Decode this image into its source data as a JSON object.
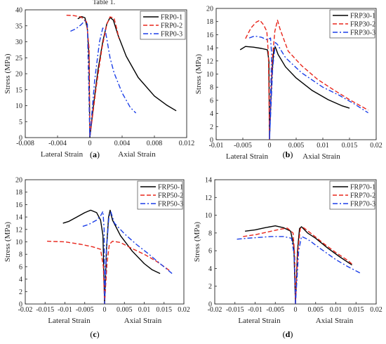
{
  "header_fragment": "Table 1.",
  "colors": {
    "series1": "#000000",
    "series2": "#e8261c",
    "series3": "#1c3fe8"
  },
  "chart_data": [
    {
      "type": "line",
      "panel": "a",
      "ylabel": "Stress (MPa)",
      "xlabel_left": "Lateral Strain",
      "xlabel_right": "Axial Strain",
      "xlim": [
        -0.008,
        0.012
      ],
      "ylim": [
        0,
        40
      ],
      "xticks": [
        -0.008,
        -0.004,
        0,
        0.004,
        0.008,
        0.012
      ],
      "xtick_labels": [
        "-0.008",
        "-0.004",
        "0",
        "0.004",
        "0.008",
        "0.012"
      ],
      "yticks": [
        0,
        5,
        10,
        15,
        20,
        25,
        30,
        35,
        40
      ],
      "ytick_labels": [
        "0",
        "5",
        "10",
        "15",
        "20",
        "25",
        "30",
        "35",
        "40"
      ],
      "legend_position": "top-right",
      "series": [
        {
          "name": "FRP0-1",
          "style": "solid",
          "points": [
            [
              -0.0015,
              37.2
            ],
            [
              -0.001,
              37.9
            ],
            [
              -0.0006,
              37.5
            ],
            [
              -0.0003,
              34
            ],
            [
              -0.0001,
              25
            ],
            [
              0,
              0
            ],
            [
              0.0004,
              9
            ],
            [
              0.001,
              21
            ],
            [
              0.0016,
              30
            ],
            [
              0.0021,
              35.6
            ],
            [
              0.0025,
              37.6
            ],
            [
              0.0029,
              36.8
            ],
            [
              0.0035,
              32
            ],
            [
              0.0045,
              25.5
            ],
            [
              0.006,
              18.8
            ],
            [
              0.008,
              13
            ],
            [
              0.0095,
              10.2
            ],
            [
              0.0107,
              8.4
            ]
          ]
        },
        {
          "name": "FRP0-2",
          "style": "dashed",
          "points": [
            [
              -0.0029,
              38.3
            ],
            [
              -0.002,
              38.2
            ],
            [
              -0.0011,
              37.8
            ],
            [
              -0.0004,
              36.2
            ],
            [
              -0.0001,
              28
            ],
            [
              0,
              0
            ],
            [
              0.0008,
              16
            ],
            [
              0.0015,
              28
            ],
            [
              0.0021,
              35.5
            ],
            [
              0.0025,
              37.8
            ],
            [
              0.003,
              37.4
            ],
            [
              0.0034,
              33.5
            ],
            [
              0.0036,
              31
            ]
          ]
        },
        {
          "name": "FRP0-3",
          "style": "dashdot",
          "points": [
            [
              -0.0024,
              33.3
            ],
            [
              -0.0017,
              34.1
            ],
            [
              -0.0011,
              35.3
            ],
            [
              -0.0006,
              36.6
            ],
            [
              -0.0003,
              35.5
            ],
            [
              0,
              0
            ],
            [
              0.0006,
              18
            ],
            [
              0.0012,
              30
            ],
            [
              0.0016,
              34.3
            ],
            [
              0.0019,
              33.8
            ],
            [
              0.0025,
              25
            ],
            [
              0.003,
              20.3
            ],
            [
              0.004,
              14
            ],
            [
              0.005,
              9.5
            ],
            [
              0.0057,
              7.7
            ]
          ]
        }
      ]
    },
    {
      "type": "line",
      "panel": "b",
      "ylabel": "Stress (MPa)",
      "xlabel_left": "Lateral Strain",
      "xlabel_right": "Axial Strain",
      "xlim": [
        -0.01,
        0.02
      ],
      "ylim": [
        0,
        20
      ],
      "xticks": [
        -0.01,
        -0.005,
        0,
        0.005,
        0.01,
        0.015,
        0.02
      ],
      "xtick_labels": [
        "-0.01",
        "-0.005",
        "0",
        "0.005",
        "0.01",
        "0.015",
        "0.02"
      ],
      "yticks": [
        0,
        2,
        4,
        6,
        8,
        10,
        12,
        14,
        16,
        18,
        20
      ],
      "ytick_labels": [
        "0",
        "2",
        "4",
        "6",
        "8",
        "10",
        "12",
        "14",
        "16",
        "18",
        "20"
      ],
      "legend_position": "top-right",
      "series": [
        {
          "name": "FRP30-1",
          "style": "solid",
          "points": [
            [
              -0.0055,
              13.7
            ],
            [
              -0.0045,
              14.2
            ],
            [
              -0.003,
              14.1
            ],
            [
              -0.0015,
              13.9
            ],
            [
              -0.0004,
              13.7
            ],
            [
              -0.0001,
              12
            ],
            [
              0,
              0
            ],
            [
              0.0004,
              9
            ],
            [
              0.0008,
              13.8
            ],
            [
              0.0011,
              14.1
            ],
            [
              0.0016,
              13
            ],
            [
              0.003,
              11.1
            ],
            [
              0.005,
              9.4
            ],
            [
              0.008,
              7.5
            ],
            [
              0.011,
              6.1
            ],
            [
              0.0135,
              5.2
            ],
            [
              0.015,
              4.8
            ]
          ]
        },
        {
          "name": "FRP30-2",
          "style": "dashed",
          "points": [
            [
              -0.0045,
              15.4
            ],
            [
              -0.0035,
              17.0
            ],
            [
              -0.0025,
              17.9
            ],
            [
              -0.0018,
              18.2
            ],
            [
              -0.0011,
              17.5
            ],
            [
              -0.0005,
              16.5
            ],
            [
              -0.0002,
              13
            ],
            [
              0,
              0
            ],
            [
              0.0005,
              12
            ],
            [
              0.001,
              16.5
            ],
            [
              0.0015,
              18.2
            ],
            [
              0.002,
              16.8
            ],
            [
              0.0035,
              13.5
            ],
            [
              0.006,
              11.3
            ],
            [
              0.009,
              9.2
            ],
            [
              0.012,
              7.6
            ],
            [
              0.015,
              6.1
            ],
            [
              0.0185,
              4.5
            ]
          ]
        },
        {
          "name": "FRP30-3",
          "style": "dashdot",
          "points": [
            [
              -0.0038,
              15.5
            ],
            [
              -0.0028,
              15.8
            ],
            [
              -0.0015,
              15.6
            ],
            [
              -0.0004,
              15.2
            ],
            [
              0.0002,
              15.5
            ],
            [
              0.0004,
              13
            ],
            [
              0,
              0
            ],
            [
              0.0006,
              11
            ],
            [
              0.0011,
              14.8
            ],
            [
              0.0015,
              14.5
            ],
            [
              0.003,
              12.5
            ],
            [
              0.006,
              10.2
            ],
            [
              0.01,
              8.0
            ],
            [
              0.013,
              6.8
            ],
            [
              0.016,
              5.4
            ],
            [
              0.0185,
              4.1
            ]
          ]
        }
      ]
    },
    {
      "type": "line",
      "panel": "c",
      "ylabel": "Stress (MPa)",
      "xlabel_left": "Lateral Strain",
      "xlabel_right": "Axial Strain",
      "xlim": [
        -0.02,
        0.02
      ],
      "ylim": [
        0,
        20
      ],
      "xticks": [
        -0.02,
        -0.015,
        -0.01,
        -0.005,
        0,
        0.005,
        0.01,
        0.015,
        0.02
      ],
      "xtick_labels": [
        "-0.02",
        "-0.015",
        "-0.01",
        "-0.005",
        "0",
        "0.005",
        "0.01",
        "0.015",
        "0.02"
      ],
      "yticks": [
        0,
        2,
        4,
        6,
        8,
        10,
        12,
        14,
        16,
        18,
        20
      ],
      "ytick_labels": [
        "0",
        "2",
        "4",
        "6",
        "8",
        "10",
        "12",
        "14",
        "16",
        "18",
        "20"
      ],
      "legend_position": "top-right",
      "series": [
        {
          "name": "FRP50-1",
          "style": "solid",
          "points": [
            [
              -0.0105,
              13
            ],
            [
              -0.009,
              13.3
            ],
            [
              -0.007,
              14
            ],
            [
              -0.005,
              14.7
            ],
            [
              -0.0035,
              15.1
            ],
            [
              -0.002,
              14.7
            ],
            [
              -0.001,
              13.5
            ],
            [
              -0.0004,
              11
            ],
            [
              0,
              0
            ],
            [
              0.0005,
              9
            ],
            [
              0.001,
              14
            ],
            [
              0.0014,
              15.1
            ],
            [
              0.002,
              13.5
            ],
            [
              0.004,
              11
            ],
            [
              0.007,
              8.5
            ],
            [
              0.01,
              6.5
            ],
            [
              0.012,
              5.5
            ],
            [
              0.014,
              4.9
            ]
          ]
        },
        {
          "name": "FRP50-2",
          "style": "dashed",
          "points": [
            [
              -0.0145,
              10.1
            ],
            [
              -0.01,
              10
            ],
            [
              -0.006,
              9.6
            ],
            [
              -0.003,
              9.2
            ],
            [
              -0.001,
              8.8
            ],
            [
              -0.0003,
              6
            ],
            [
              0,
              0
            ],
            [
              0.0006,
              6.5
            ],
            [
              0.0012,
              9.6
            ],
            [
              0.002,
              10.1
            ],
            [
              0.004,
              9.9
            ],
            [
              0.007,
              8.9
            ],
            [
              0.01,
              8.0
            ],
            [
              0.013,
              6.9
            ],
            [
              0.0155,
              5.8
            ],
            [
              0.0165,
              5.3
            ]
          ]
        },
        {
          "name": "FRP50-3",
          "style": "dashdot",
          "points": [
            [
              -0.0055,
              12.5
            ],
            [
              -0.004,
              12.8
            ],
            [
              -0.002,
              13.5
            ],
            [
              -0.001,
              14.2
            ],
            [
              -0.0004,
              14.9
            ],
            [
              -0.0001,
              12
            ],
            [
              0,
              0
            ],
            [
              0.0005,
              9
            ],
            [
              0.0011,
              14
            ],
            [
              0.0016,
              14.8
            ],
            [
              0.0025,
              13
            ],
            [
              0.005,
              11.3
            ],
            [
              0.008,
              9.6
            ],
            [
              0.011,
              8.1
            ],
            [
              0.014,
              6.5
            ],
            [
              0.017,
              4.9
            ]
          ]
        }
      ]
    },
    {
      "type": "line",
      "panel": "d",
      "ylabel": "Stress (MPa)",
      "xlabel_left": "Lateral Strain",
      "xlabel_right": "Axial Strain",
      "xlim": [
        -0.02,
        0.02
      ],
      "ylim": [
        0,
        14
      ],
      "xticks": [
        -0.02,
        -0.015,
        -0.01,
        -0.005,
        0,
        0.005,
        0.01,
        0.015,
        0.02
      ],
      "xtick_labels": [
        "-0.02",
        "-0.015",
        "-0.01",
        "-0.005",
        "0",
        "0.005",
        "0.01",
        "0.015",
        "0.02"
      ],
      "yticks": [
        0,
        2,
        4,
        6,
        8,
        10,
        12,
        14
      ],
      "ytick_labels": [
        "0",
        "2",
        "4",
        "6",
        "8",
        "10",
        "12",
        "14"
      ],
      "legend_position": "top-right",
      "series": [
        {
          "name": "FRP70-1",
          "style": "solid",
          "points": [
            [
              -0.0125,
              8.2
            ],
            [
              -0.01,
              8.35
            ],
            [
              -0.0075,
              8.6
            ],
            [
              -0.005,
              8.8
            ],
            [
              -0.003,
              8.6
            ],
            [
              -0.0012,
              8.2
            ],
            [
              -0.0004,
              6.5
            ],
            [
              0,
              0
            ],
            [
              0.0005,
              6
            ],
            [
              0.001,
              8.5
            ],
            [
              0.0015,
              8.7
            ],
            [
              0.003,
              8.0
            ],
            [
              0.005,
              7.4
            ],
            [
              0.008,
              6.3
            ],
            [
              0.011,
              5.3
            ],
            [
              0.014,
              4.4
            ]
          ]
        },
        {
          "name": "FRP70-2",
          "style": "dashed",
          "points": [
            [
              -0.013,
              7.6
            ],
            [
              -0.01,
              7.8
            ],
            [
              -0.007,
              8.1
            ],
            [
              -0.004,
              8.4
            ],
            [
              -0.002,
              8.55
            ],
            [
              -0.0006,
              8.0
            ],
            [
              -0.0002,
              5.5
            ],
            [
              0,
              0
            ],
            [
              0.0006,
              6
            ],
            [
              0.0012,
              8.5
            ],
            [
              0.002,
              8.6
            ],
            [
              0.004,
              7.9
            ],
            [
              0.007,
              6.8
            ],
            [
              0.01,
              5.8
            ],
            [
              0.013,
              4.9
            ],
            [
              0.014,
              4.5
            ]
          ]
        },
        {
          "name": "FRP70-3",
          "style": "dashdot",
          "points": [
            [
              -0.0145,
              7.3
            ],
            [
              -0.012,
              7.4
            ],
            [
              -0.009,
              7.5
            ],
            [
              -0.006,
              7.6
            ],
            [
              -0.003,
              7.6
            ],
            [
              -0.001,
              7.4
            ],
            [
              -0.0003,
              5.5
            ],
            [
              0,
              0
            ],
            [
              0.0008,
              6
            ],
            [
              0.0015,
              7.6
            ],
            [
              0.003,
              7.3
            ],
            [
              0.006,
              6.3
            ],
            [
              0.01,
              5.0
            ],
            [
              0.013,
              4.2
            ],
            [
              0.016,
              3.5
            ]
          ]
        }
      ]
    }
  ],
  "captions": [
    "(a)",
    "(b)",
    "(c)",
    "(d)"
  ]
}
